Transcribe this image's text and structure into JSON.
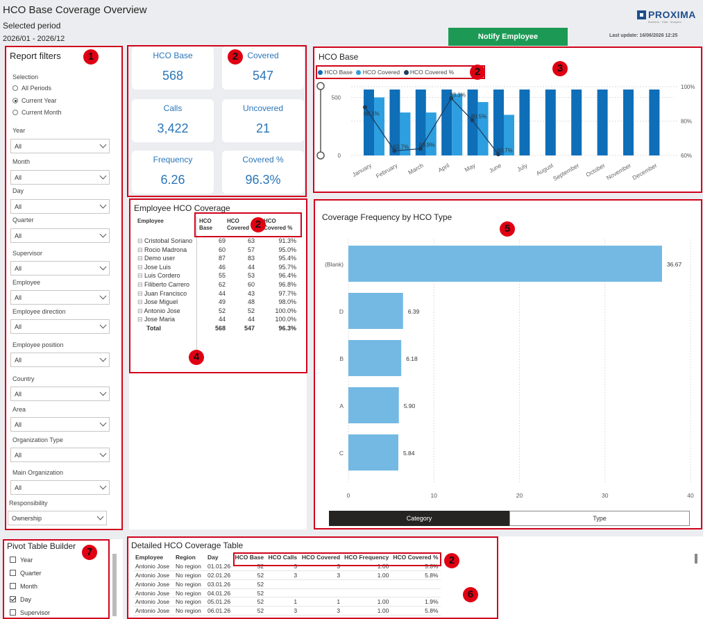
{
  "header": {
    "title": "HCO Base Coverage Overview",
    "period_label": "Selected period",
    "period_value": "2026/01 - 2026/12",
    "notify_button": "Notify Employee",
    "last_update": "Last update: 16/06/2026 12:25",
    "logo_text": "PROXIMA",
    "logo_sub": "Business · Data · Analytics"
  },
  "filters": {
    "title": "Report filters",
    "selection_label": "Selection",
    "radios": [
      {
        "label": "All Periods",
        "selected": false
      },
      {
        "label": "Current Year",
        "selected": true
      },
      {
        "label": "Current Month",
        "selected": false
      }
    ],
    "dropdowns": [
      {
        "label": "Year",
        "value": "All"
      },
      {
        "label": "Month",
        "value": "All"
      },
      {
        "label": "Day",
        "value": "All"
      },
      {
        "label": "Quarter",
        "value": "All"
      },
      {
        "label": "Supervisor",
        "value": "All"
      },
      {
        "label": "Employee",
        "value": "All"
      },
      {
        "label": "Employee direction",
        "value": "All"
      },
      {
        "label": "Employee position",
        "value": "All"
      },
      {
        "label": "Country",
        "value": "All"
      },
      {
        "label": "Area",
        "value": "All"
      },
      {
        "label": "Organization Type",
        "value": "All"
      },
      {
        "label": "Main Organization",
        "value": "All"
      },
      {
        "label": "Responsibility",
        "value": "Ownership"
      }
    ]
  },
  "kpis": [
    {
      "label": "HCO Base",
      "value": "568"
    },
    {
      "label": "Covered",
      "value": "547"
    },
    {
      "label": "Calls",
      "value": "3,422"
    },
    {
      "label": "Uncovered",
      "value": "21"
    },
    {
      "label": "Frequency",
      "value": "6.26"
    },
    {
      "label": "Covered %",
      "value": "96.3%"
    }
  ],
  "employee_table": {
    "title": "Employee HCO Coverage",
    "headers": [
      "Employee",
      "HCO Base",
      "HCO Covered",
      "HCO Covered %"
    ],
    "rows": [
      [
        "Cristobal Soriano",
        "69",
        "63",
        "91.3%"
      ],
      [
        "Rocio Madrona",
        "60",
        "57",
        "95.0%"
      ],
      [
        "Demo user",
        "87",
        "83",
        "95.4%"
      ],
      [
        "Jose Luis",
        "46",
        "44",
        "95.7%"
      ],
      [
        "Luis Cordero",
        "55",
        "53",
        "96.4%"
      ],
      [
        "Filiberto Carrero",
        "62",
        "60",
        "96.8%"
      ],
      [
        "Juan Francisco",
        "44",
        "43",
        "97.7%"
      ],
      [
        "Jose Miguel",
        "49",
        "48",
        "98.0%"
      ],
      [
        "Antonio Jose",
        "52",
        "52",
        "100.0%"
      ],
      [
        "Jose Maria",
        "44",
        "44",
        "100.0%"
      ]
    ],
    "total": [
      "Total",
      "568",
      "547",
      "96.3%"
    ]
  },
  "chart_data": [
    {
      "type": "bar",
      "title": "HCO Base",
      "legend": [
        "HCO Base",
        "HCO Covered",
        "HCO Covered %"
      ],
      "categories": [
        "January",
        "February",
        "March",
        "April",
        "May",
        "June",
        "July",
        "August",
        "September",
        "October",
        "November",
        "December"
      ],
      "series": [
        {
          "name": "HCO Base",
          "values": [
            568,
            568,
            568,
            568,
            568,
            568,
            568,
            568,
            568,
            568,
            568,
            568
          ],
          "color": "#0e6eb8"
        },
        {
          "name": "HCO Covered",
          "values": [
            500,
            370,
            370,
            530,
            460,
            350,
            null,
            null,
            null,
            null,
            null,
            null
          ],
          "color": "#2d9fe0"
        },
        {
          "name": "HCO Covered %",
          "values": [
            88.1,
            62.7,
            63.9,
            93.3,
            80.5,
            60.7,
            null,
            null,
            null,
            null,
            null,
            null
          ],
          "color": "#1d3f5e"
        }
      ],
      "y_ticks": [
        "0",
        "500"
      ],
      "y2_ticks": [
        "60%",
        "80%",
        "100%"
      ],
      "data_labels": [
        "88.1%",
        "62.7%",
        "63.9%",
        "93.3%",
        "80.5%",
        "60.7%"
      ]
    },
    {
      "type": "bar",
      "orientation": "horizontal",
      "title": "Coverage Frequency by HCO Type",
      "categories": [
        "(Blank)",
        "D",
        "B",
        "A",
        "C"
      ],
      "values": [
        36.67,
        6.39,
        6.18,
        5.9,
        5.84
      ],
      "data_labels": [
        "36.67",
        "6.39",
        "6.18",
        "5.90",
        "5.84"
      ],
      "x_ticks": [
        "0",
        "10",
        "20",
        "30",
        "40"
      ],
      "xlim": [
        0,
        40
      ],
      "color": "#73b9e3",
      "toggle": [
        {
          "label": "Category",
          "active": true
        },
        {
          "label": "Type",
          "active": false
        }
      ]
    }
  ],
  "pivot": {
    "title": "Pivot Table Builder",
    "items": [
      {
        "label": "Year",
        "checked": false
      },
      {
        "label": "Quarter",
        "checked": false
      },
      {
        "label": "Month",
        "checked": false
      },
      {
        "label": "Day",
        "checked": true
      },
      {
        "label": "Supervisor",
        "checked": false
      }
    ]
  },
  "detail_table": {
    "title": "Detailed HCO Coverage Table",
    "headers": [
      "Employee",
      "Region",
      "Day",
      "HCO Base",
      "HCO Calls",
      "HCO Covered",
      "HCO Frequency",
      "HCO Covered %"
    ],
    "rows": [
      [
        "Antonio Jose",
        "No region",
        "01.01.26",
        "52",
        "3",
        "3",
        "1.00",
        "5.8%"
      ],
      [
        "Antonio Jose",
        "No region",
        "02.01.26",
        "52",
        "3",
        "3",
        "1.00",
        "5.8%"
      ],
      [
        "Antonio Jose",
        "No region",
        "03.01.26",
        "52",
        "",
        "",
        "",
        ""
      ],
      [
        "Antonio Jose",
        "No region",
        "04.01.26",
        "52",
        "",
        "",
        "",
        ""
      ],
      [
        "Antonio Jose",
        "No region",
        "05.01.26",
        "52",
        "1",
        "1",
        "1.00",
        "1.9%"
      ],
      [
        "Antonio Jose",
        "No region",
        "06.01.26",
        "52",
        "3",
        "3",
        "1.00",
        "5.8%"
      ]
    ]
  },
  "badges": [
    "1",
    "2",
    "3",
    "4",
    "5",
    "6",
    "7"
  ]
}
